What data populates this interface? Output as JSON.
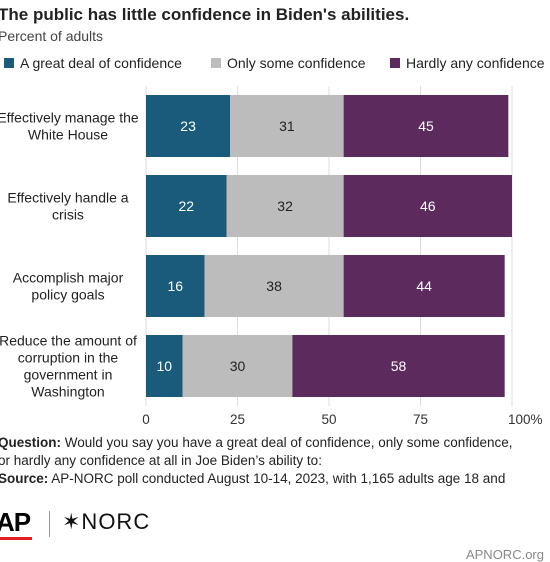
{
  "header": {
    "title": "The public has little confidence in Biden's abilities.",
    "subtitle": "Percent of adults"
  },
  "colors": {
    "great_deal": "#1a5a7a",
    "only_some": "#bcbcbc",
    "hardly_any": "#5c2a5c",
    "grid": "#dddddd",
    "ap_red": "#e21e26"
  },
  "chart_data": {
    "type": "bar",
    "orientation": "horizontal",
    "stacked": true,
    "categories": [
      "Effectively manage the White House",
      "Effectively handle a crisis",
      "Accomplish major policy goals",
      "Reduce the amount of corruption in the government in Washington"
    ],
    "category_lines": [
      [
        "Effectively manage the",
        "White House"
      ],
      [
        "Effectively handle a",
        "crisis"
      ],
      [
        "Accomplish major",
        "policy goals"
      ],
      [
        "Reduce the amount of",
        "corruption in the",
        "government in",
        "Washington"
      ]
    ],
    "series": [
      {
        "name": "A great deal of confidence",
        "values": [
          23,
          22,
          16,
          10
        ]
      },
      {
        "name": "Only some confidence",
        "values": [
          31,
          32,
          38,
          30
        ]
      },
      {
        "name": "Hardly any confidence",
        "values": [
          45,
          46,
          44,
          58
        ]
      }
    ],
    "xlim": [
      0,
      100
    ],
    "x_ticks": [
      "0",
      "25",
      "50",
      "75",
      "100%"
    ],
    "grid": true,
    "legend_position": "top"
  },
  "notes": {
    "question_label": "Question:",
    "question_line1": " Would you say you have a great deal of confidence, only some confidence,",
    "question_line2": "or hardly any confidence at all in Joe Biden’s ability to:",
    "source_label": "Source:",
    "source_text": " AP-NORC poll conducted August 10-14, 2023, with 1,165 adults age 18 and"
  },
  "footer": {
    "ap_logo": "AP",
    "norc_logo": "✶NORC",
    "site": "APNORC.org"
  }
}
